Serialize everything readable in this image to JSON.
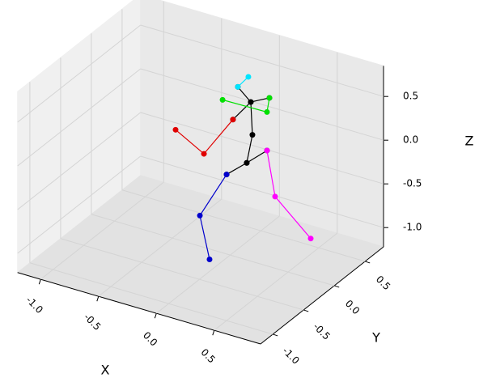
{
  "chart_data": {
    "type": "line3d",
    "xlabel": "X",
    "ylabel": "Y",
    "zlabel": "Z",
    "xlim": [
      -1.2,
      0.9
    ],
    "ylim": [
      -1.2,
      0.8
    ],
    "zlim": [
      -1.22,
      0.85
    ],
    "xticks": [
      {
        "value": -1,
        "label": "-1.0"
      },
      -0.5,
      {
        "value": 0,
        "label": "0.0"
      },
      0.5
    ],
    "yticks": [
      {
        "value": -1,
        "label": "-1.0"
      },
      -0.5,
      {
        "value": 0,
        "label": "0.0"
      },
      0.5
    ],
    "zticks": [
      {
        "value": -1,
        "label": "-1.0"
      },
      -0.5,
      {
        "value": 0,
        "label": "0.0"
      },
      0.5
    ],
    "grid": true,
    "series": [
      {
        "color": "#000000",
        "x": [
          0.066,
          0.178,
          0.192,
          0.143
        ],
        "y": [
          0,
          0,
          0,
          0
        ],
        "z": [
          0.73,
          0.6,
          0.23,
          -0.11
        ]
      },
      {
        "color": "#00e5ff",
        "x": [
          0.066,
          0.157
        ],
        "y": [
          0,
          0
        ],
        "z": [
          0.73,
          0.88
        ]
      },
      {
        "color": "#000000",
        "x": [
          -0.031,
          0.143,
          0.318
        ],
        "y": [
          0,
          0,
          0
        ],
        "z": [
          -0.31,
          -0.11,
          0.1
        ]
      },
      {
        "color": "#000000",
        "x": [
          0.339,
          0.178,
          0.024
        ],
        "y": [
          0,
          0,
          0
        ],
        "z": [
          0.71,
          0.6,
          0.34
        ]
      },
      {
        "color": "#00e000",
        "x": [
          -0.066,
          0.318,
          0.339
        ],
        "y": [
          0,
          0,
          0
        ],
        "z": [
          0.53,
          0.54,
          0.71
        ]
      },
      {
        "color": "#e00000",
        "x": [
          0.024,
          -0.227,
          -0.472
        ],
        "y": [
          0,
          0,
          0
        ],
        "z": [
          0.34,
          -0.15,
          0.03
        ]
      },
      {
        "color": "#ff00ff",
        "x": [
          0.318,
          0.388,
          0.696
        ],
        "y": [
          0,
          0,
          0
        ],
        "z": [
          0.1,
          -0.4,
          -0.76
        ]
      },
      {
        "color": "#0000cc",
        "x": [
          -0.031,
          -0.262,
          -0.019
        ],
        "y": [
          0,
          0,
          -0.3
        ],
        "z": [
          -0.31,
          -0.87,
          -1.11
        ]
      }
    ]
  }
}
